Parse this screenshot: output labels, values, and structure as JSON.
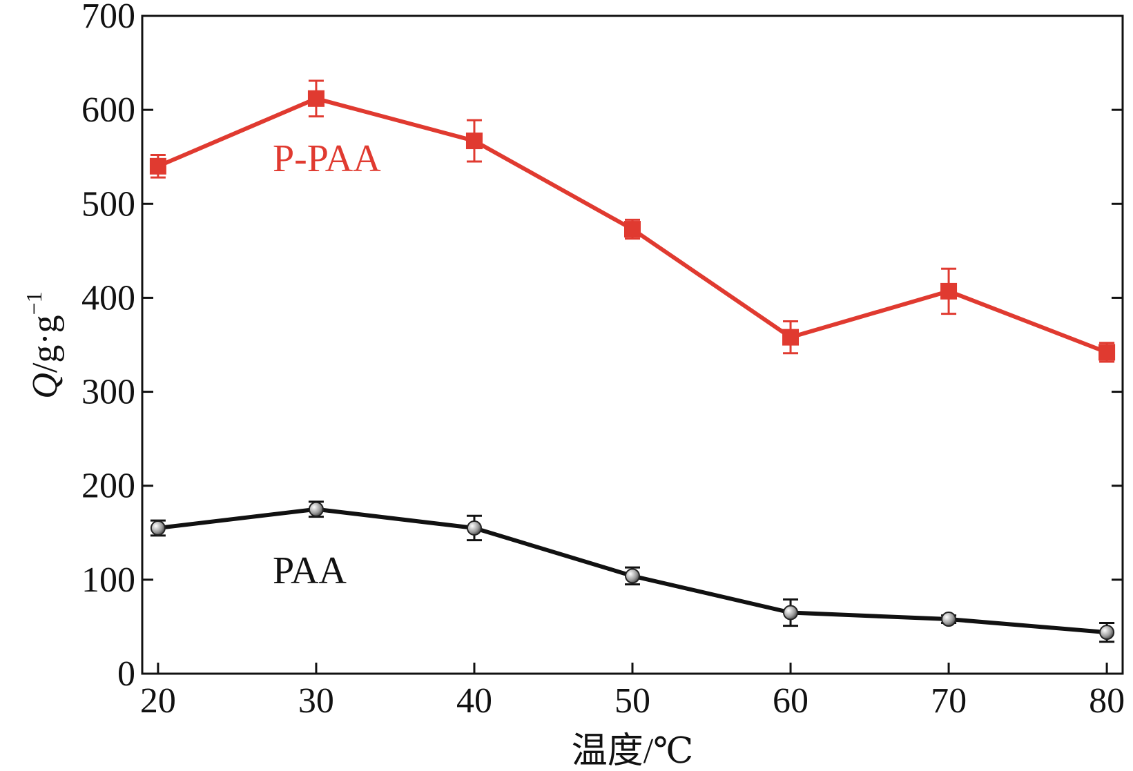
{
  "chart_data": {
    "type": "line",
    "title": "",
    "xlabel": "温度/℃",
    "ylabel": {
      "symbol": "Q",
      "unit": "/g·g",
      "exponent": "−1"
    },
    "x": [
      20,
      30,
      40,
      50,
      60,
      70,
      80
    ],
    "xlim": [
      19,
      81
    ],
    "ylim": [
      0,
      700
    ],
    "xticks": [
      20,
      30,
      40,
      50,
      60,
      70,
      80
    ],
    "yticks": [
      0,
      100,
      200,
      300,
      400,
      500,
      600,
      700
    ],
    "grid": false,
    "series": [
      {
        "name": "P-PAA",
        "color": "#e03a30",
        "marker": "square",
        "values": [
          540,
          612,
          567,
          473,
          358,
          407,
          342
        ],
        "errors": [
          12,
          19,
          22,
          10,
          17,
          24,
          10
        ]
      },
      {
        "name": "PAA",
        "color": "#111111",
        "marker": "circle",
        "values": [
          155,
          175,
          155,
          104,
          65,
          58,
          44
        ],
        "errors": [
          8,
          8,
          13,
          9,
          14,
          4,
          10
        ]
      }
    ]
  }
}
